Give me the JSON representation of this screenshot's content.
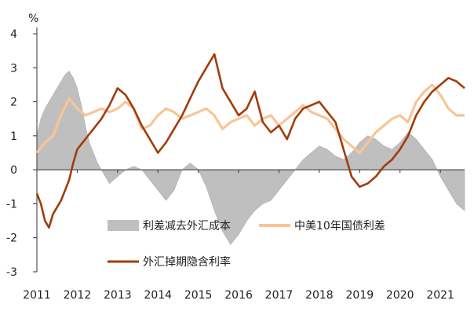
{
  "chart_data": {
    "type": "line",
    "unit_label": "%",
    "ylim": [
      -3,
      4
    ],
    "yticks": [
      4,
      3,
      2,
      1,
      0,
      -1,
      -2,
      -3
    ],
    "xlim": [
      2011.0,
      2021.6
    ],
    "xticks": [
      "2011",
      "2012",
      "2013",
      "2014",
      "2015",
      "2016",
      "2017",
      "2018",
      "2019",
      "2020",
      "2021"
    ],
    "grid": false,
    "legend": [
      {
        "name": "利差减去外汇成本",
        "color": "#bfbfbf",
        "kind": "area"
      },
      {
        "name": "中美10年国债利差",
        "color": "#f8c597",
        "kind": "line"
      },
      {
        "name": "外汇掉期隐含利率",
        "color": "#a13c0b",
        "kind": "line"
      }
    ],
    "series": [
      {
        "name": "利差减去外汇成本",
        "type": "area",
        "color": "#bfbfbf",
        "x": [
          2011.0,
          2011.1,
          2011.2,
          2011.3,
          2011.4,
          2011.5,
          2011.6,
          2011.7,
          2011.8,
          2011.9,
          2012.0,
          2012.1,
          2012.2,
          2012.3,
          2012.4,
          2012.5,
          2012.6,
          2012.7,
          2012.8,
          2013.0,
          2013.2,
          2013.4,
          2013.6,
          2013.8,
          2014.0,
          2014.2,
          2014.4,
          2014.6,
          2014.8,
          2015.0,
          2015.2,
          2015.4,
          2015.6,
          2015.8,
          2016.0,
          2016.2,
          2016.4,
          2016.6,
          2016.8,
          2017.0,
          2017.2,
          2017.4,
          2017.6,
          2017.8,
          2018.0,
          2018.2,
          2018.4,
          2018.6,
          2018.8,
          2019.0,
          2019.2,
          2019.4,
          2019.6,
          2019.8,
          2020.0,
          2020.2,
          2020.4,
          2020.6,
          2020.8,
          2021.0,
          2021.2,
          2021.4,
          2021.6
        ],
        "values": [
          1.0,
          1.5,
          1.8,
          2.0,
          2.2,
          2.4,
          2.6,
          2.8,
          2.9,
          2.7,
          2.4,
          1.9,
          1.3,
          0.8,
          0.5,
          0.2,
          0.0,
          -0.2,
          -0.4,
          -0.2,
          0.0,
          0.1,
          0.0,
          -0.3,
          -0.6,
          -0.9,
          -0.6,
          0.0,
          0.2,
          0.0,
          -0.5,
          -1.2,
          -1.8,
          -2.2,
          -1.9,
          -1.5,
          -1.2,
          -1.0,
          -0.9,
          -0.6,
          -0.3,
          0.0,
          0.3,
          0.5,
          0.7,
          0.6,
          0.4,
          0.3,
          0.5,
          0.8,
          1.0,
          0.9,
          0.7,
          0.6,
          0.8,
          1.1,
          0.9,
          0.6,
          0.3,
          -0.2,
          -0.6,
          -1.0,
          -1.2
        ]
      },
      {
        "name": "中美10年国债利差",
        "type": "line",
        "color": "#f8c597",
        "x": [
          2011.0,
          2011.2,
          2011.4,
          2011.6,
          2011.8,
          2012.0,
          2012.2,
          2012.4,
          2012.6,
          2012.8,
          2013.0,
          2013.2,
          2013.4,
          2013.6,
          2013.8,
          2014.0,
          2014.2,
          2014.4,
          2014.6,
          2014.8,
          2015.0,
          2015.2,
          2015.4,
          2015.6,
          2015.8,
          2016.0,
          2016.2,
          2016.4,
          2016.6,
          2016.8,
          2017.0,
          2017.2,
          2017.4,
          2017.6,
          2017.8,
          2018.0,
          2018.2,
          2018.4,
          2018.6,
          2018.8,
          2019.0,
          2019.2,
          2019.4,
          2019.6,
          2019.8,
          2020.0,
          2020.2,
          2020.4,
          2020.6,
          2020.8,
          2021.0,
          2021.2,
          2021.4,
          2021.6
        ],
        "values": [
          0.5,
          0.8,
          1.0,
          1.6,
          2.1,
          1.8,
          1.6,
          1.7,
          1.8,
          1.7,
          1.8,
          2.0,
          1.8,
          1.2,
          1.3,
          1.6,
          1.8,
          1.7,
          1.5,
          1.6,
          1.7,
          1.8,
          1.6,
          1.2,
          1.4,
          1.5,
          1.6,
          1.3,
          1.5,
          1.6,
          1.3,
          1.5,
          1.7,
          1.9,
          1.7,
          1.6,
          1.5,
          1.2,
          0.9,
          0.7,
          0.5,
          0.8,
          1.1,
          1.3,
          1.5,
          1.6,
          1.4,
          2.0,
          2.3,
          2.5,
          2.2,
          1.8,
          1.6,
          1.6
        ]
      },
      {
        "name": "外汇掉期隐含利率",
        "type": "line",
        "color": "#a13c0b",
        "x": [
          2011.0,
          2011.1,
          2011.2,
          2011.3,
          2011.4,
          2011.5,
          2011.6,
          2011.7,
          2011.8,
          2011.9,
          2012.0,
          2012.2,
          2012.4,
          2012.6,
          2012.8,
          2013.0,
          2013.2,
          2013.4,
          2013.6,
          2013.8,
          2014.0,
          2014.2,
          2014.4,
          2014.6,
          2014.8,
          2015.0,
          2015.2,
          2015.4,
          2015.6,
          2015.8,
          2016.0,
          2016.2,
          2016.4,
          2016.6,
          2016.8,
          2017.0,
          2017.2,
          2017.4,
          2017.6,
          2017.8,
          2018.0,
          2018.2,
          2018.4,
          2018.6,
          2018.8,
          2019.0,
          2019.2,
          2019.4,
          2019.6,
          2019.8,
          2020.0,
          2020.2,
          2020.4,
          2020.6,
          2020.8,
          2021.0,
          2021.2,
          2021.4,
          2021.6
        ],
        "values": [
          -0.7,
          -1.0,
          -1.5,
          -1.7,
          -1.3,
          -1.1,
          -0.9,
          -0.6,
          -0.3,
          0.2,
          0.6,
          0.9,
          1.2,
          1.5,
          1.9,
          2.4,
          2.2,
          1.8,
          1.3,
          0.9,
          0.5,
          0.8,
          1.2,
          1.6,
          2.1,
          2.6,
          3.0,
          3.4,
          2.4,
          2.0,
          1.6,
          1.8,
          2.3,
          1.4,
          1.1,
          1.3,
          0.9,
          1.5,
          1.8,
          1.9,
          2.0,
          1.7,
          1.4,
          0.6,
          -0.2,
          -0.5,
          -0.4,
          -0.2,
          0.1,
          0.3,
          0.6,
          1.0,
          1.6,
          2.0,
          2.3,
          2.5,
          2.7,
          2.6,
          2.4
        ]
      }
    ]
  }
}
